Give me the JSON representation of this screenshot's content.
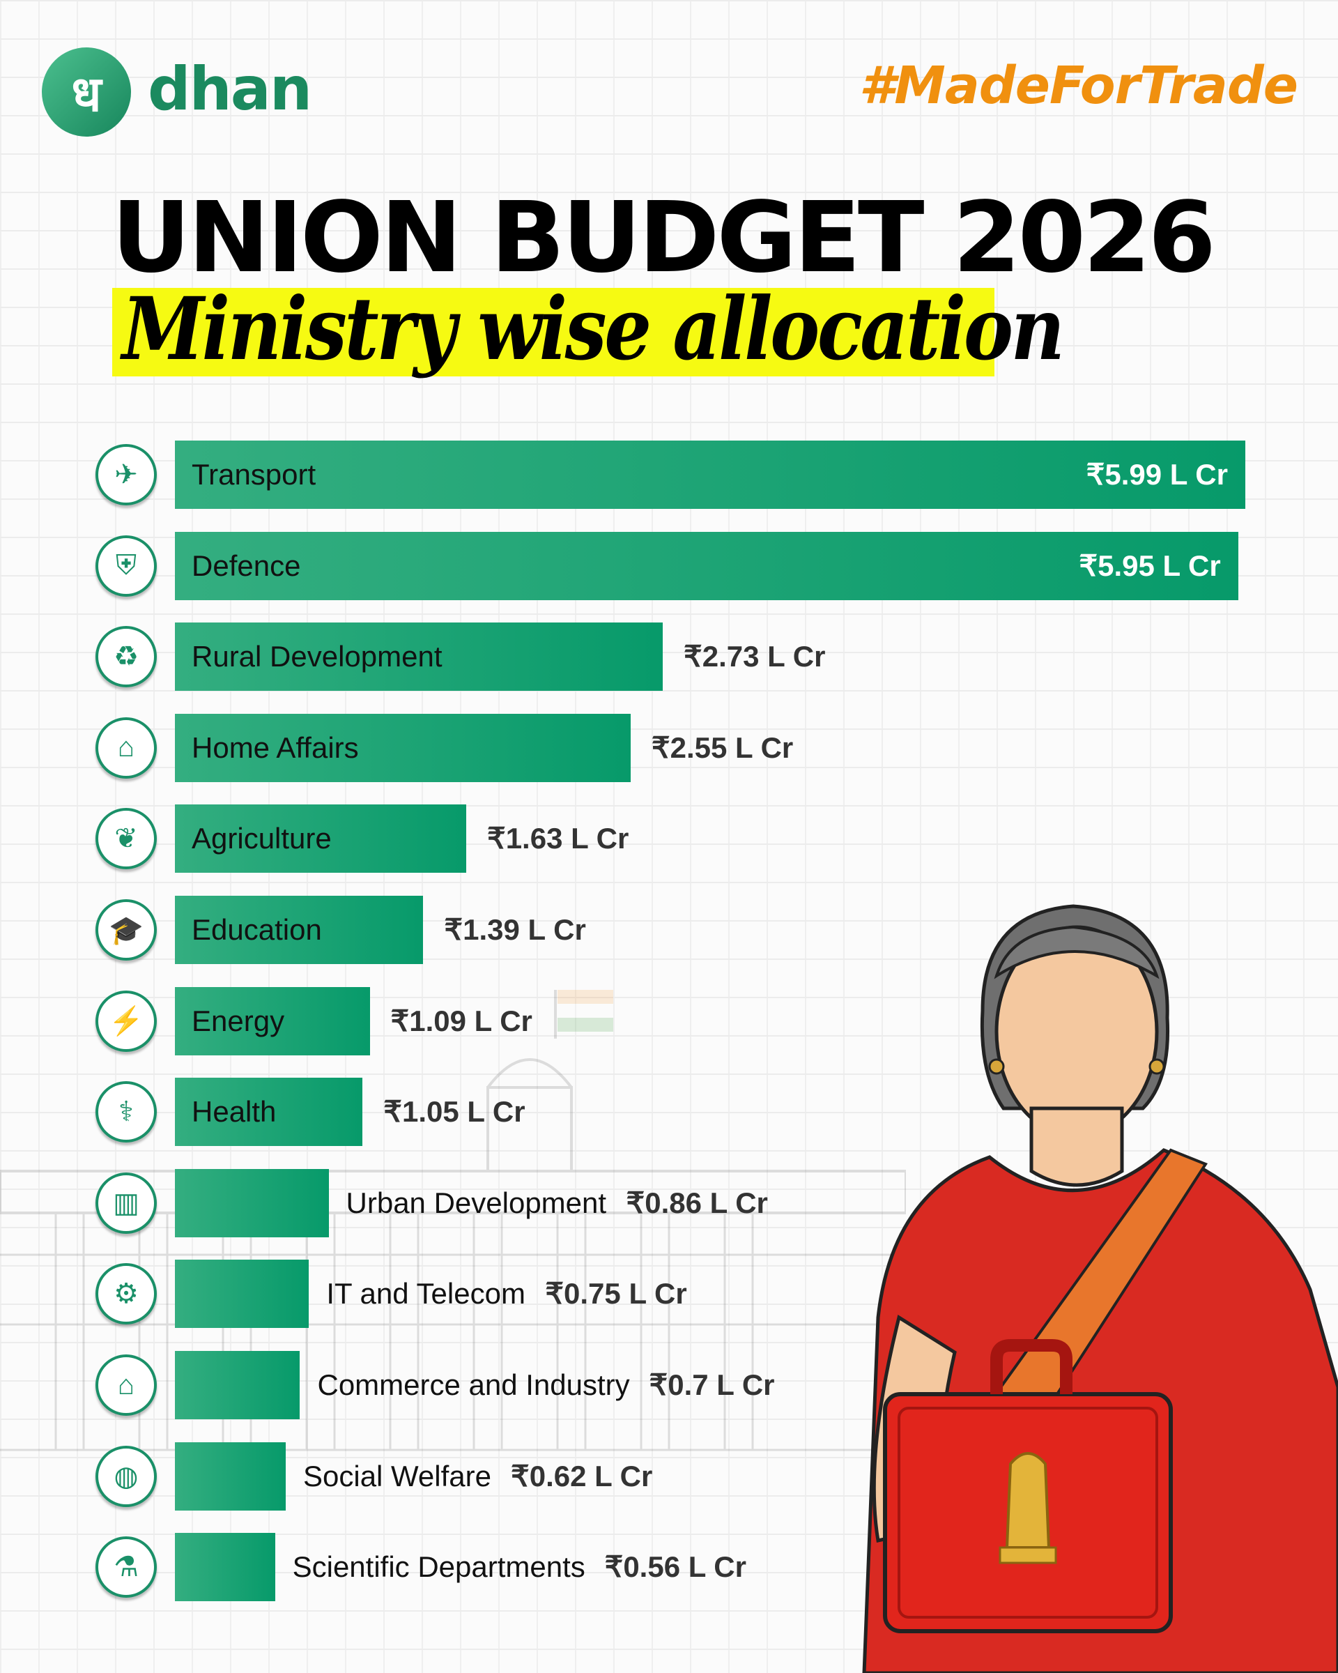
{
  "header": {
    "logo_glyph": "ध",
    "brand": "dhan",
    "hashtag": "#MadeForTrade"
  },
  "title": "UNION BUDGET 2026",
  "subtitle": "Ministry wise allocation",
  "colors": {
    "bar": "#1a9e70",
    "accent": "#f0900f",
    "highlight": "#f6fa12"
  },
  "chart_data": {
    "type": "bar",
    "orientation": "horizontal",
    "title": "Ministry wise allocation",
    "unit": "L Cr",
    "categories": [
      "Transport",
      "Defence",
      "Rural Development",
      "Home Affairs",
      "Agriculture",
      "Education",
      "Energy",
      "Health",
      "Urban Development",
      "IT and Telecom",
      "Commerce and Industry",
      "Social Welfare",
      "Scientific Departments"
    ],
    "values": [
      5.99,
      5.95,
      2.73,
      2.55,
      1.63,
      1.39,
      1.09,
      1.05,
      0.86,
      0.75,
      0.7,
      0.62,
      0.56
    ],
    "value_labels": [
      "₹5.99 L Cr",
      "₹5.95 L Cr",
      "₹2.73 L Cr",
      "₹2.55 L Cr",
      "₹1.63 L Cr",
      "₹1.39 L Cr",
      "₹1.09 L Cr",
      "₹1.05 L Cr",
      "₹0.86 L Cr",
      "₹0.75 L Cr",
      "₹0.7 L Cr",
      "₹0.62 L Cr",
      "₹0.56 L Cr"
    ],
    "icons": [
      "transport-icon",
      "shield-icon",
      "globe-hand-icon",
      "home-icon",
      "crops-icon",
      "graduation-cap-icon",
      "lightning-icon",
      "stethoscope-icon",
      "city-chart-icon",
      "monitor-gear-icon",
      "factory-icon",
      "people-globe-icon",
      "lab-chart-icon"
    ]
  }
}
